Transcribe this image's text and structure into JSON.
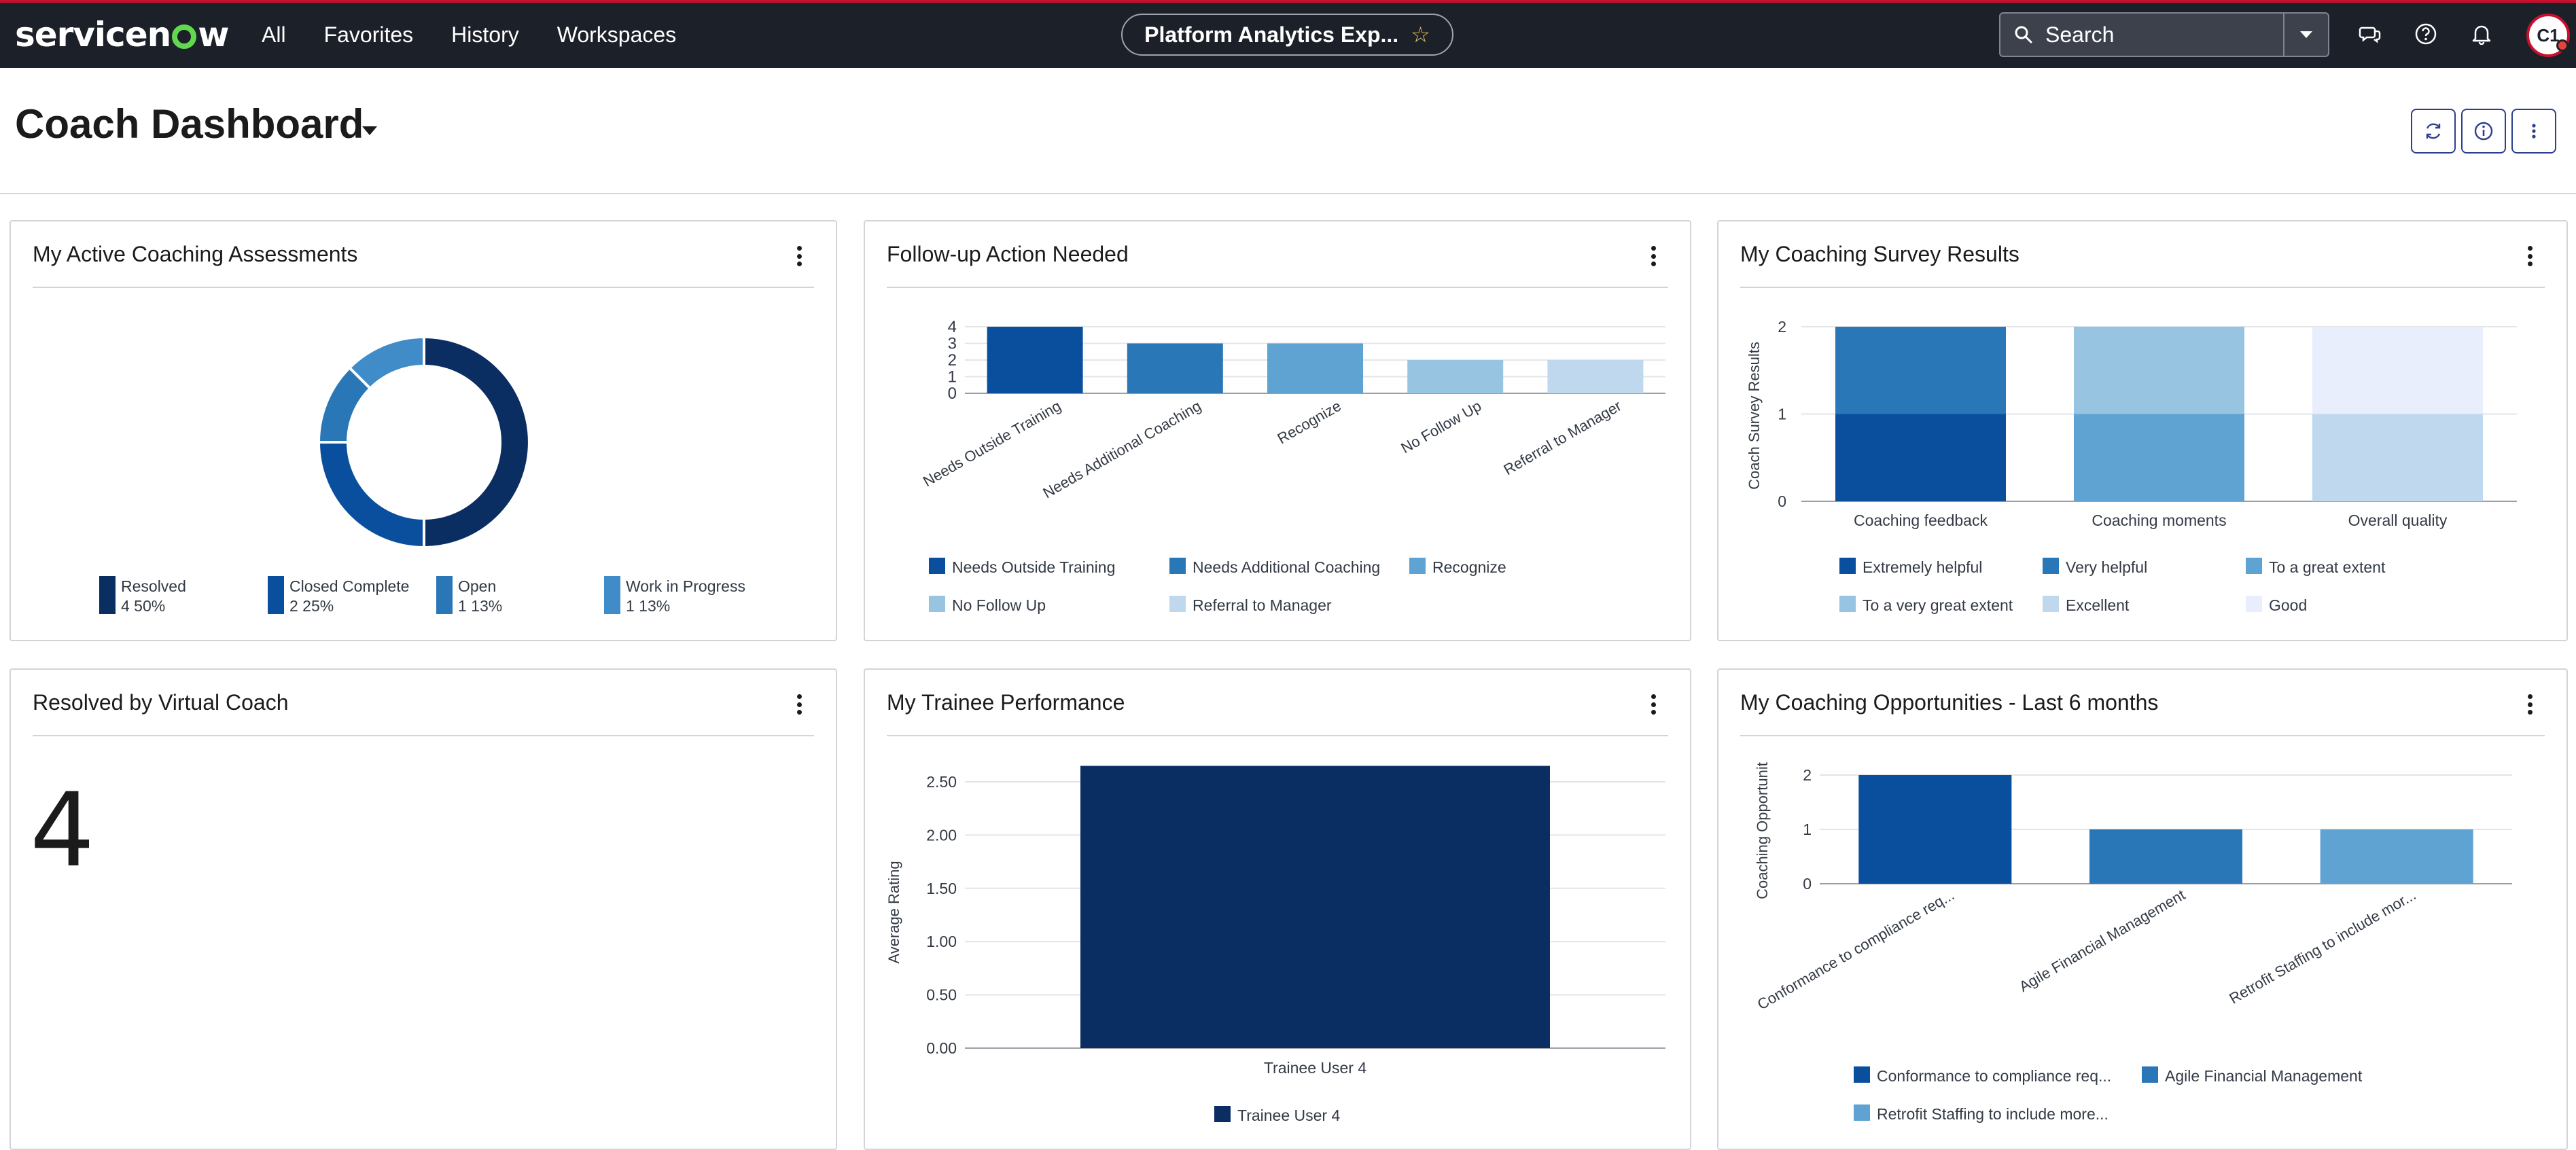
{
  "nav": {
    "brand": "servicenow",
    "links": [
      "All",
      "Favorites",
      "History",
      "Workspaces"
    ],
    "pill_label": "Platform Analytics Exp...",
    "search_placeholder": "Search",
    "avatar_initials": "C1"
  },
  "page": {
    "title": "Coach Dashboard"
  },
  "colors": {
    "c1": "#0a2d62",
    "c2": "#0a4f9e",
    "c3": "#2a77b8",
    "c4": "#5ea3d1",
    "c5": "#97c4e0",
    "c6": "#bfd8ee",
    "c7": "#e8eefb"
  },
  "cards": {
    "assessments": {
      "title": "My Active Coaching Assessments"
    },
    "followup": {
      "title": "Follow-up Action Needed"
    },
    "survey": {
      "title": "My Coaching Survey Results"
    },
    "virtual": {
      "title": "Resolved by Virtual Coach",
      "value": "4"
    },
    "trainee": {
      "title": "My Trainee Performance"
    },
    "opportunities": {
      "title": "My Coaching Opportunities - Last 6 months"
    }
  },
  "chart_data": [
    {
      "id": "assessments",
      "type": "pie",
      "categories": [
        "Resolved",
        "Closed Complete",
        "Open",
        "Work in Progress"
      ],
      "values": [
        4,
        2,
        1,
        1
      ],
      "labels": [
        "4   50%",
        "2   25%",
        "1   13%",
        "1   13%"
      ],
      "colors": [
        "#0a2d62",
        "#0a4f9e",
        "#2a77b8",
        "#3f8cc8"
      ],
      "legend": "bottom"
    },
    {
      "id": "followup",
      "type": "bar",
      "categories": [
        "Needs Outside Training",
        "Needs Additional Coaching",
        "Recognize",
        "No Follow Up",
        "Referral to Manager"
      ],
      "values": [
        4,
        3,
        3,
        2,
        2
      ],
      "ylim": [
        0,
        4
      ],
      "yticks": [
        "0",
        "1",
        "2",
        "3",
        "4"
      ],
      "colors": [
        "#0a4f9e",
        "#2a77b8",
        "#5ea3d1",
        "#97c4e0",
        "#bfd8ee"
      ],
      "legend": "bottom",
      "grid": true
    },
    {
      "id": "survey",
      "type": "bar",
      "stacked": true,
      "ylabel": "Coach Survey Results",
      "categories": [
        "Coaching feedback",
        "Coaching moments",
        "Overall quality"
      ],
      "ylim": [
        0,
        2
      ],
      "yticks": [
        "0",
        "1",
        "2"
      ],
      "series": [
        {
          "name": "Extremely helpful",
          "values": [
            1,
            0,
            0
          ],
          "color": "#0a4f9e"
        },
        {
          "name": "Very helpful",
          "values": [
            1,
            0,
            0
          ],
          "color": "#2a77b8"
        },
        {
          "name": "To a great extent",
          "values": [
            0,
            1,
            0
          ],
          "color": "#5ea3d1"
        },
        {
          "name": "To a very great extent",
          "values": [
            0,
            1,
            0
          ],
          "color": "#97c4e0"
        },
        {
          "name": "Excellent",
          "values": [
            0,
            0,
            1
          ],
          "color": "#bfd8ee"
        },
        {
          "name": "Good",
          "values": [
            0,
            0,
            1
          ],
          "color": "#e8eefb"
        }
      ],
      "legend": "bottom",
      "grid": true
    },
    {
      "id": "trainee",
      "type": "bar",
      "ylabel": "Average Rating",
      "categories": [
        "Trainee User 4"
      ],
      "values": [
        2.67
      ],
      "ylim": [
        0,
        2.5
      ],
      "yticks": [
        "0.00",
        "0.50",
        "1.00",
        "1.50",
        "2.00",
        "2.50"
      ],
      "colors": [
        "#0a2d62"
      ],
      "legend": "bottom",
      "grid": true
    },
    {
      "id": "opportunities",
      "type": "bar",
      "ylabel": "Coaching Opportunit",
      "categories": [
        "Conformance to compliance req...",
        "Agile Financial Management",
        "Retrofit Staffing to include mor..."
      ],
      "legend_labels": [
        "Conformance to compliance req...",
        "Agile Financial Management",
        "Retrofit Staffing to include more..."
      ],
      "values": [
        2,
        1,
        1
      ],
      "ylim": [
        0,
        2
      ],
      "yticks": [
        "0",
        "1",
        "2"
      ],
      "colors": [
        "#0a4f9e",
        "#2a77b8",
        "#5ea3d1"
      ],
      "legend": "bottom",
      "grid": true
    }
  ]
}
